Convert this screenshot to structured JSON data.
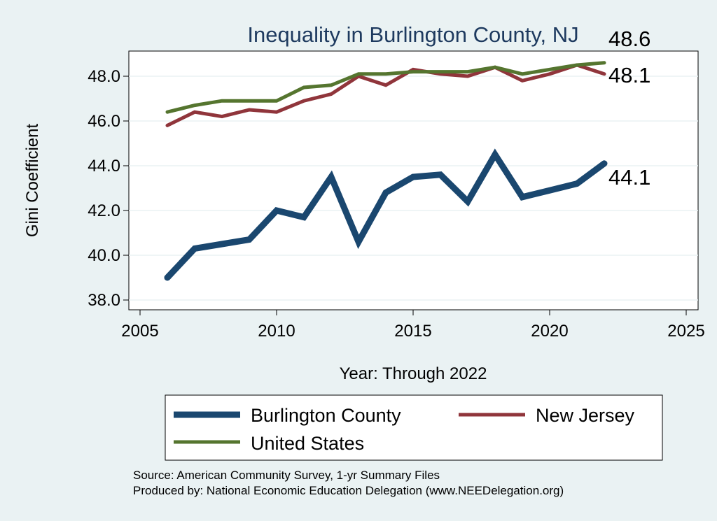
{
  "chart_data": {
    "type": "line",
    "title": "Inequality in Burlington County, NJ",
    "xlabel": "Year: Through 2022",
    "ylabel": "Gini Coefficient",
    "xlim": [
      2004.8,
      2025.4
    ],
    "ylim": [
      37.5,
      49.1
    ],
    "x_ticks": [
      2005,
      2010,
      2015,
      2020,
      2025
    ],
    "y_ticks": [
      38,
      40,
      42,
      44,
      46,
      48
    ],
    "x_tick_labels": [
      "2005",
      "2010",
      "2015",
      "2020",
      "2025"
    ],
    "y_tick_labels": [
      "38.0",
      "40.0",
      "42.0",
      "44.0",
      "46.0",
      "48.0"
    ],
    "grid": "horizontal",
    "legend_position": "bottom",
    "x": [
      2006,
      2007,
      2008,
      2009,
      2010,
      2011,
      2012,
      2013,
      2014,
      2015,
      2016,
      2017,
      2018,
      2019,
      2020,
      2021,
      2022
    ],
    "series": [
      {
        "name": "Burlington County",
        "color": "#1a476f",
        "values": [
          39.0,
          40.3,
          40.5,
          40.7,
          42.0,
          41.7,
          43.5,
          40.6,
          42.8,
          43.5,
          43.6,
          42.4,
          44.5,
          42.6,
          42.9,
          43.2,
          44.1
        ],
        "end_label": "44.1"
      },
      {
        "name": "New Jersey",
        "color": "#90353b",
        "values": [
          45.8,
          46.4,
          46.2,
          46.5,
          46.4,
          46.9,
          47.2,
          48.0,
          47.6,
          48.3,
          48.1,
          48.0,
          48.4,
          47.8,
          48.1,
          48.5,
          48.1
        ],
        "end_label": "48.1"
      },
      {
        "name": "United States",
        "color": "#55752f",
        "values": [
          46.4,
          46.7,
          46.9,
          46.9,
          46.9,
          47.5,
          47.6,
          48.1,
          48.1,
          48.2,
          48.2,
          48.2,
          48.4,
          48.1,
          48.3,
          48.5,
          48.6
        ],
        "end_label": "48.6"
      }
    ],
    "legend": [
      {
        "name": "Burlington County",
        "color": "#1a476f"
      },
      {
        "name": "New Jersey",
        "color": "#90353b"
      },
      {
        "name": "United States",
        "color": "#55752f"
      }
    ],
    "notes": [
      "Source: American Community Survey, 1-yr Summary Files",
      "Produced by: National Economic Education Delegation (www.NEEDelegation.org)"
    ]
  }
}
